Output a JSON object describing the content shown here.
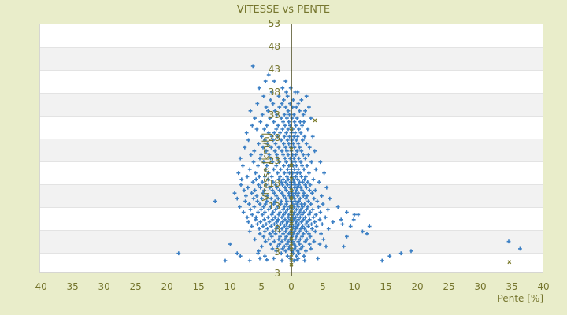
{
  "chart_data": {
    "type": "scatter",
    "title": "VITESSE vs PENTE",
    "xlabel": "Pente [%]",
    "ylabel": "Vitesse [km/h]",
    "xlim": [
      -40,
      40
    ],
    "xticks": [
      -40,
      -35,
      -30,
      -25,
      -20,
      -15,
      -10,
      -5,
      0,
      5,
      10,
      15,
      20,
      25,
      30,
      35,
      40
    ],
    "yticks": [
      53,
      48,
      43,
      38,
      33,
      28,
      23,
      18,
      13,
      8,
      3
    ],
    "ytick_bottom_extra_label": "3",
    "grid": "alternating-horizontal-bands",
    "legend": "none",
    "zero_line_x": 0,
    "colors": {
      "page_background": "#e9edca",
      "plot_background": "#ffffff",
      "band_alt": "#f2f2f2",
      "band_separator": "#e3e3e3",
      "axis_text": "#75752d",
      "zero_line": "#4a4a1e",
      "marker_blue": "#3b7fc4",
      "marker_olive": "#7a7a2a"
    },
    "series": [
      {
        "name": "vitesse-points",
        "marker": "plus",
        "color": "#3b7fc4",
        "rows": [
          {
            "y": 43.7,
            "xs": [
              -6.1
            ]
          },
          {
            "y": 41.8,
            "xs": [
              -3.6
            ]
          },
          {
            "y": 40.4,
            "xs": [
              -4.1,
              -2.7,
              -0.9
            ]
          },
          {
            "y": 38.9,
            "xs": [
              -5.1,
              -1.4,
              -0.1
            ]
          },
          {
            "y": 38.0,
            "xs": [
              -3.1,
              -0.8,
              0.6,
              1.0
            ]
          },
          {
            "y": 37.1,
            "xs": [
              -4.4,
              -2.0,
              -0.6,
              2.4
            ]
          },
          {
            "y": 36.3,
            "xs": [
              -3.3,
              -1.2,
              0.3,
              1.6
            ]
          },
          {
            "y": 35.5,
            "xs": [
              -5.4,
              -2.9,
              -1.5,
              -0.2,
              1.1
            ]
          },
          {
            "y": 34.7,
            "xs": [
              -4.0,
              -1.9,
              -0.9,
              0.2,
              0.8,
              2.8
            ]
          },
          {
            "y": 33.9,
            "xs": [
              -6.5,
              -3.7,
              -2.6,
              -0.5,
              1.3,
              2.2
            ]
          },
          {
            "y": 33.1,
            "xs": [
              -4.6,
              -2.3,
              -1.1,
              -0.3,
              0.4,
              1.9
            ]
          },
          {
            "y": 32.3,
            "xs": [
              -5.8,
              -3.4,
              -1.6,
              -0.7,
              0.1,
              0.9,
              3.1
            ]
          },
          {
            "y": 31.5,
            "xs": [
              -4.9,
              -2.8,
              -1.3,
              -0.4,
              0.5,
              1.4,
              2.0
            ]
          },
          {
            "y": 30.7,
            "xs": [
              -6.2,
              -3.9,
              -2.1,
              -1.0,
              -0.2,
              0.7,
              1.7
            ]
          },
          {
            "y": 29.9,
            "xs": [
              -5.5,
              -4.3,
              -2.4,
              -1.4,
              -0.5,
              0.2,
              1.2,
              2.6
            ]
          },
          {
            "y": 29.1,
            "xs": [
              -7.1,
              -3.6,
              -2.7,
              -1.8,
              -0.8,
              0.0,
              0.6,
              1.5
            ]
          },
          {
            "y": 28.3,
            "xs": [
              -4.7,
              -3.1,
              -2.2,
              -1.1,
              -0.3,
              0.4,
              1.0,
              2.1,
              3.4
            ]
          },
          {
            "y": 27.5,
            "xs": [
              -6.8,
              -4.2,
              -2.9,
              -1.6,
              -0.6,
              0.1,
              0.8,
              1.8
            ]
          },
          {
            "y": 26.7,
            "xs": [
              -5.2,
              -3.8,
              -2.5,
              -1.2,
              -0.4,
              0.3,
              1.1,
              2.4
            ]
          },
          {
            "y": 25.9,
            "xs": [
              -7.4,
              -4.5,
              -3.2,
              -2.0,
              -0.9,
              -0.1,
              0.5,
              1.3,
              2.9
            ]
          },
          {
            "y": 25.1,
            "xs": [
              -5.9,
              -4.0,
              -2.6,
              -1.5,
              -0.7,
              0.0,
              0.9,
              1.6,
              3.7
            ]
          },
          {
            "y": 24.3,
            "xs": [
              -6.4,
              -4.8,
              -3.5,
              -2.3,
              -1.3,
              -0.5,
              0.2,
              0.7,
              1.9,
              2.7
            ]
          },
          {
            "y": 23.5,
            "xs": [
              -8.1,
              -5.0,
              -3.3,
              -2.1,
              -1.0,
              -0.2,
              0.4,
              1.2,
              2.2
            ]
          },
          {
            "y": 22.7,
            "xs": [
              -6.0,
              -4.4,
              -3.0,
              -1.9,
              -0.8,
              0.1,
              0.6,
              1.5,
              3.2,
              4.6
            ]
          },
          {
            "y": 21.9,
            "xs": [
              -7.7,
              -5.3,
              -3.9,
              -2.4,
              -1.2,
              -0.4,
              0.3,
              0.8,
              1.7,
              2.5
            ]
          },
          {
            "y": 21.1,
            "xs": [
              -6.6,
              -4.1,
              -2.8,
              -1.7,
              -0.6,
              0.0,
              0.5,
              1.1,
              2.0,
              3.9
            ]
          },
          {
            "y": 20.3,
            "xs": [
              -8.4,
              -5.7,
              -3.6,
              -2.2,
              -1.1,
              -0.3,
              0.2,
              0.9,
              1.4,
              2.8,
              5.2
            ]
          },
          {
            "y": 19.5,
            "xs": [
              -7.0,
              -5.1,
              -4.2,
              -3.1,
              -1.8,
              -0.7,
              0.1,
              0.7,
              1.6,
              2.3
            ]
          },
          {
            "y": 18.9,
            "xs": [
              -7.9,
              -5.6,
              -3.7,
              -2.0,
              -1.3,
              -0.5,
              0.3,
              1.0,
              2.1,
              3.5
            ]
          },
          {
            "y": 18.3,
            "xs": [
              -6.1,
              -4.6,
              -2.9,
              -1.6,
              -0.9,
              -0.1,
              0.4,
              1.3,
              1.8,
              2.6,
              4.4
            ]
          },
          {
            "y": 17.7,
            "xs": [
              -8.0,
              -5.2,
              -4.0,
              -2.5,
              -1.4,
              -0.6,
              0.0,
              0.6,
              1.2,
              2.2,
              3.0
            ]
          },
          {
            "y": 17.1,
            "xs": [
              -6.9,
              -4.9,
              -3.4,
              -2.3,
              -1.0,
              -0.2,
              0.5,
              0.9,
              1.5,
              2.4,
              5.6
            ]
          },
          {
            "y": 16.5,
            "xs": [
              -7.5,
              -5.8,
              -4.3,
              -3.0,
              -1.9,
              -0.8,
              0.1,
              0.8,
              1.7,
              2.9,
              3.8
            ]
          },
          {
            "y": 15.9,
            "xs": [
              -9.0,
              -6.3,
              -4.5,
              -2.7,
              -1.5,
              -0.4,
              0.2,
              0.7,
              1.1,
              2.0,
              3.3
            ]
          },
          {
            "y": 15.3,
            "xs": [
              -7.2,
              -5.5,
              -3.8,
              -2.4,
              -1.2,
              -0.3,
              0.3,
              1.0,
              1.9,
              2.5,
              4.8
            ]
          },
          {
            "y": 14.7,
            "xs": [
              -8.6,
              -6.0,
              -4.7,
              -3.2,
              -2.1,
              -0.9,
              -0.1,
              0.5,
              1.4,
              2.3,
              3.6,
              6.1
            ]
          },
          {
            "y": 14.1,
            "xs": [
              -12.1,
              -7.3,
              -5.4,
              -3.9,
              -2.6,
              -1.6,
              -0.7,
              0.0,
              0.6,
              1.2,
              2.7,
              4.1
            ]
          },
          {
            "y": 13.5,
            "xs": [
              -6.7,
              -5.0,
              -4.1,
              -2.8,
              -1.7,
              -0.8,
              0.2,
              0.9,
              1.6,
              2.1,
              3.1,
              5.0
            ]
          },
          {
            "y": 12.9,
            "xs": [
              -8.2,
              -5.9,
              -4.4,
              -3.3,
              -2.2,
              -1.1,
              -0.3,
              0.4,
              1.1,
              1.8,
              2.6,
              4.3,
              7.4
            ]
          },
          {
            "y": 12.3,
            "xs": [
              -6.5,
              -4.8,
              -3.6,
              -2.5,
              -1.3,
              -0.6,
              0.1,
              0.8,
              1.5,
              2.4,
              3.4,
              5.8
            ]
          },
          {
            "y": 11.7,
            "xs": [
              -7.6,
              -5.3,
              -4.2,
              -2.9,
              -1.8,
              -0.9,
              0.0,
              0.5,
              1.3,
              2.0,
              3.0,
              4.6,
              8.8
            ]
          },
          {
            "y": 11.2,
            "xs": [
              -6.2,
              -4.6,
              -3.1,
              -2.0,
              -1.2,
              -0.4,
              0.3,
              1.0,
              1.7,
              2.8,
              3.9,
              10.0,
              10.6
            ]
          },
          {
            "y": 10.6,
            "xs": [
              -7.0,
              -5.6,
              -3.7,
              -2.6,
              -1.5,
              -0.5,
              0.2,
              0.7,
              1.4,
              2.2,
              3.5,
              5.4
            ]
          },
          {
            "y": 10.1,
            "xs": [
              -5.7,
              -4.3,
              -3.0,
              -2.1,
              -1.0,
              -0.2,
              0.4,
              1.1,
              1.9,
              2.9,
              4.5,
              7.9,
              9.9
            ]
          },
          {
            "y": 9.6,
            "xs": [
              -6.8,
              -4.9,
              -3.5,
              -2.3,
              -1.4,
              -0.6,
              0.1,
              0.8,
              1.6,
              2.5,
              3.7,
              6.6
            ]
          },
          {
            "y": 9.1,
            "xs": [
              -5.4,
              -4.0,
              -2.7,
              -1.7,
              -0.8,
              0.0,
              0.6,
              1.2,
              2.3,
              3.2,
              4.9,
              8.1
            ]
          },
          {
            "y": 8.6,
            "xs": [
              -6.3,
              -4.5,
              -3.2,
              -2.2,
              -1.1,
              -0.3,
              0.3,
              0.9,
              1.8,
              2.7,
              4.0,
              9.4,
              12.4
            ]
          },
          {
            "y": 8.1,
            "xs": [
              -5.1,
              -3.8,
              -2.4,
              -1.5,
              -0.7,
              0.2,
              0.7,
              1.5,
              2.1,
              3.3,
              5.9
            ]
          },
          {
            "y": 7.5,
            "xs": [
              -6.6,
              -4.2,
              -2.9,
              -1.9,
              -0.9,
              -0.1,
              0.5,
              1.3,
              2.4,
              3.8,
              11.3
            ]
          },
          {
            "y": 7.0,
            "xs": [
              -5.0,
              -3.4,
              -2.5,
              -1.3,
              -0.4,
              0.3,
              1.0,
              1.9,
              2.8,
              4.7,
              12.0
            ]
          },
          {
            "y": 6.4,
            "xs": [
              -4.4,
              -3.1,
              -1.8,
              -0.8,
              0.1,
              0.8,
              1.7,
              3.0,
              8.8
            ]
          },
          {
            "y": 5.8,
            "xs": [
              -5.8,
              -3.6,
              -2.0,
              -1.0,
              -0.2,
              0.6,
              1.4,
              2.5,
              5.1
            ]
          },
          {
            "y": 5.3,
            "xs": [
              -4.1,
              -2.7,
              -1.5,
              -0.5,
              0.2,
              1.1,
              2.2,
              3.6,
              34.5
            ]
          },
          {
            "y": 4.7,
            "xs": [
              -9.7,
              -3.3,
              -1.9,
              -0.7,
              0.4,
              1.3,
              2.9,
              4.5
            ]
          },
          {
            "y": 4.2,
            "xs": [
              -4.7,
              -2.2,
              -1.1,
              -0.3,
              0.7,
              1.8,
              5.5,
              8.3
            ]
          },
          {
            "y": 3.7,
            "xs": [
              -3.0,
              -1.4,
              -0.4,
              0.5,
              1.5,
              3.1,
              36.3
            ]
          },
          {
            "y": 3.2,
            "xs": [
              -5.2,
              -2.4,
              -0.9,
              0.1,
              1.0,
              2.3,
              19.0
            ]
          },
          {
            "y": 2.7,
            "xs": [
              -17.9,
              -8.6,
              -5.3,
              -1.6,
              0.3,
              1.2,
              17.4
            ]
          },
          {
            "y": 2.1,
            "xs": [
              -8.1,
              -4.2,
              -0.6,
              0.8,
              2.0,
              15.6
            ]
          },
          {
            "y": 1.6,
            "xs": [
              -5.0,
              -2.8,
              -0.2,
              1.1,
              4.2
            ]
          },
          {
            "y": 1.3,
            "xs": [
              -3.9,
              0.9
            ]
          },
          {
            "y": 1.1,
            "xs": [
              -10.5,
              -6.6,
              -1.5,
              0.4,
              2.1,
              14.4
            ]
          }
        ]
      },
      {
        "name": "marques-olive",
        "marker": "x",
        "color": "#7a7a2a",
        "points": [
          [
            0,
            30.0
          ],
          [
            0,
            25.5
          ],
          [
            0,
            22.0
          ],
          [
            0,
            19.0
          ],
          [
            0,
            16.5
          ],
          [
            0,
            14.8
          ],
          [
            0,
            13.0
          ],
          [
            0,
            12.2
          ],
          [
            0,
            11.4
          ],
          [
            0,
            10.3
          ],
          [
            0,
            9.2
          ],
          [
            0,
            8.1
          ],
          [
            0,
            7.0
          ],
          [
            0,
            5.9
          ],
          [
            0,
            4.8
          ],
          [
            0,
            3.6
          ],
          [
            0,
            2.4
          ],
          [
            0,
            1.2
          ],
          [
            0,
            0.2
          ],
          [
            3.75,
            31.8
          ],
          [
            34.6,
            0.8
          ]
        ]
      }
    ]
  }
}
